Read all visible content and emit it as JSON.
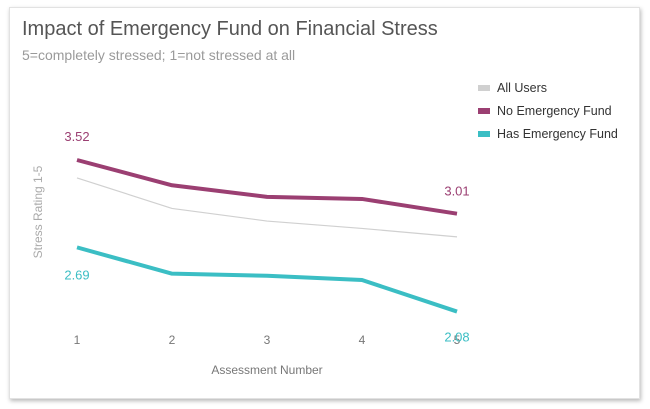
{
  "chart_data": {
    "type": "line",
    "title": "Impact of Emergency Fund on Financial Stress",
    "subtitle": "5=completely stressed; 1=not stressed at all",
    "xlabel": "Assessment Number",
    "ylabel": "Stress Rating 1-5",
    "x": [
      1,
      2,
      3,
      4,
      5
    ],
    "ylim": [
      2.0,
      3.9
    ],
    "grid": false,
    "legend_position": "top-right",
    "series": [
      {
        "name": "All Users",
        "color": "#d0d0d0",
        "values": [
          3.35,
          3.06,
          2.94,
          2.87,
          2.79
        ],
        "end_labels": false
      },
      {
        "name": "No Emergency Fund",
        "color": "#9b3f72",
        "values": [
          3.52,
          3.28,
          3.17,
          3.15,
          3.01
        ],
        "end_labels": true,
        "first_label": "3.52",
        "last_label": "3.01"
      },
      {
        "name": "Has Emergency Fund",
        "color": "#3bbec4",
        "values": [
          2.69,
          2.44,
          2.42,
          2.38,
          2.08
        ],
        "end_labels": true,
        "first_label": "2.69",
        "last_label": "2.08"
      }
    ],
    "tick_labels": [
      "1",
      "2",
      "3",
      "4",
      "5"
    ]
  }
}
